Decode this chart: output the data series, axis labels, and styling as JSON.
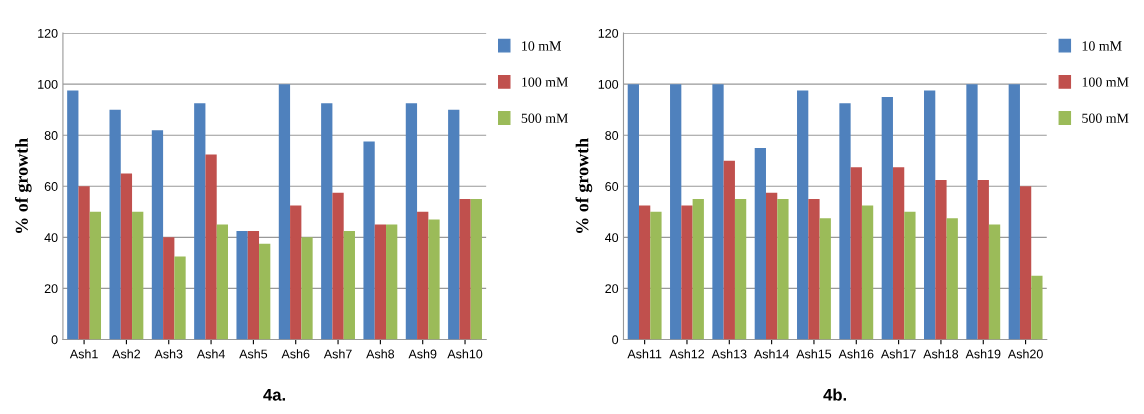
{
  "chart_data": [
    {
      "type": "bar",
      "ylabel": "% of growth",
      "annotations": [
        "4a."
      ],
      "categories": [
        "Ash1",
        "Ash2",
        "Ash3",
        "Ash4",
        "Ash5",
        "Ash6",
        "Ash7",
        "Ash8",
        "Ash9",
        "Ash10"
      ],
      "series": [
        {
          "name": "10 mM",
          "color": "#4f81bd",
          "values": [
            97.5,
            90,
            82,
            92.5,
            42.5,
            100,
            92.5,
            77.5,
            92.5,
            90
          ]
        },
        {
          "name": "100 mM",
          "color": "#c0504d",
          "values": [
            60,
            65,
            40,
            72.5,
            42.5,
            52.5,
            57.5,
            45,
            50,
            55
          ]
        },
        {
          "name": "500 mM",
          "color": "#9bbb59",
          "values": [
            50,
            50,
            32.5,
            45,
            37.5,
            40,
            42.5,
            45,
            47,
            55
          ]
        }
      ],
      "ylim": [
        0,
        120
      ],
      "yticks": [
        0,
        20,
        40,
        60,
        80,
        100,
        120
      ],
      "grid": "y",
      "legend": "top right"
    },
    {
      "type": "bar",
      "ylabel": "% of growth",
      "annotations": [
        "4b."
      ],
      "categories": [
        "Ash11",
        "Ash12",
        "Ash13",
        "Ash14",
        "Ash15",
        "Ash16",
        "Ash17",
        "Ash18",
        "Ash19",
        "Ash20"
      ],
      "series": [
        {
          "name": "10 mM",
          "color": "#4f81bd",
          "values": [
            100,
            100,
            100,
            75,
            97.5,
            92.5,
            95,
            97.5,
            100,
            100
          ]
        },
        {
          "name": "100 mM",
          "color": "#c0504d",
          "values": [
            52.5,
            52.5,
            70,
            57.5,
            55,
            67.5,
            67.5,
            62.5,
            62.5,
            60
          ]
        },
        {
          "name": "500 mM",
          "color": "#9bbb59",
          "values": [
            50,
            55,
            55,
            55,
            47.5,
            52.5,
            50,
            47.5,
            45,
            25
          ]
        }
      ],
      "ylim": [
        0,
        120
      ],
      "yticks": [
        0,
        20,
        40,
        60,
        80,
        100,
        120
      ],
      "grid": "y",
      "legend": "top right"
    }
  ]
}
